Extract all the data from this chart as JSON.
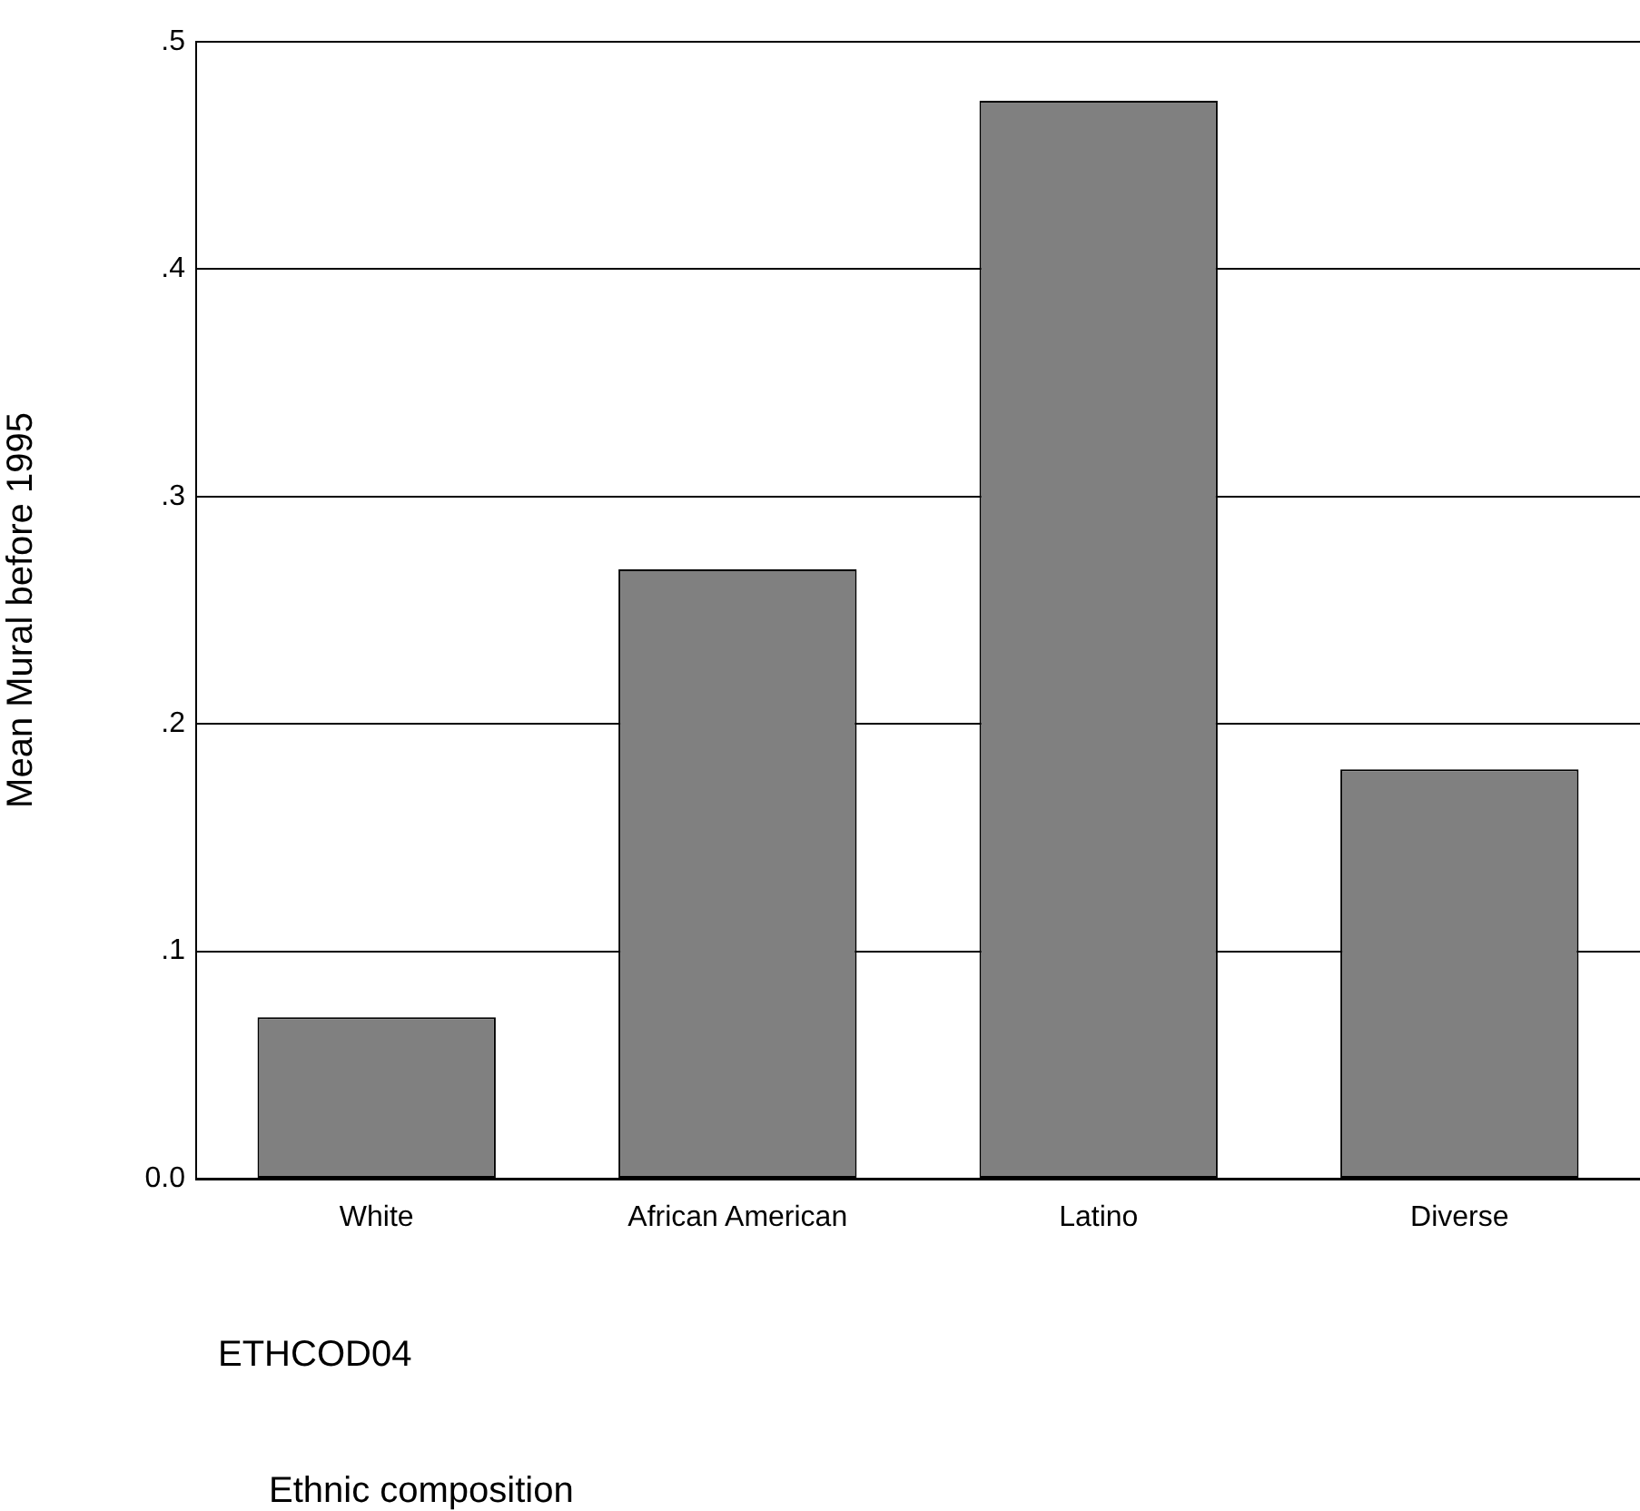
{
  "chart_data": {
    "type": "bar",
    "categories": [
      "White",
      "African American",
      "Latino",
      "Diverse"
    ],
    "values": [
      0.071,
      0.268,
      0.474,
      0.18
    ],
    "color": "#808080",
    "ylabel": "Mean Mural before 1995",
    "xlabel": "ETHCOD04",
    "annotations": [
      "Ethnic composition"
    ],
    "ylim": [
      0,
      0.5
    ],
    "yticks": [
      {
        "value": 0,
        "label": "0.0"
      },
      {
        "value": 0.1,
        "label": ".1"
      },
      {
        "value": 0.2,
        "label": ".2"
      },
      {
        "value": 0.3,
        "label": ".3"
      },
      {
        "value": 0.4,
        "label": ".4"
      },
      {
        "value": 0.5,
        "label": ".5"
      }
    ],
    "grid": "y",
    "legend": false
  }
}
